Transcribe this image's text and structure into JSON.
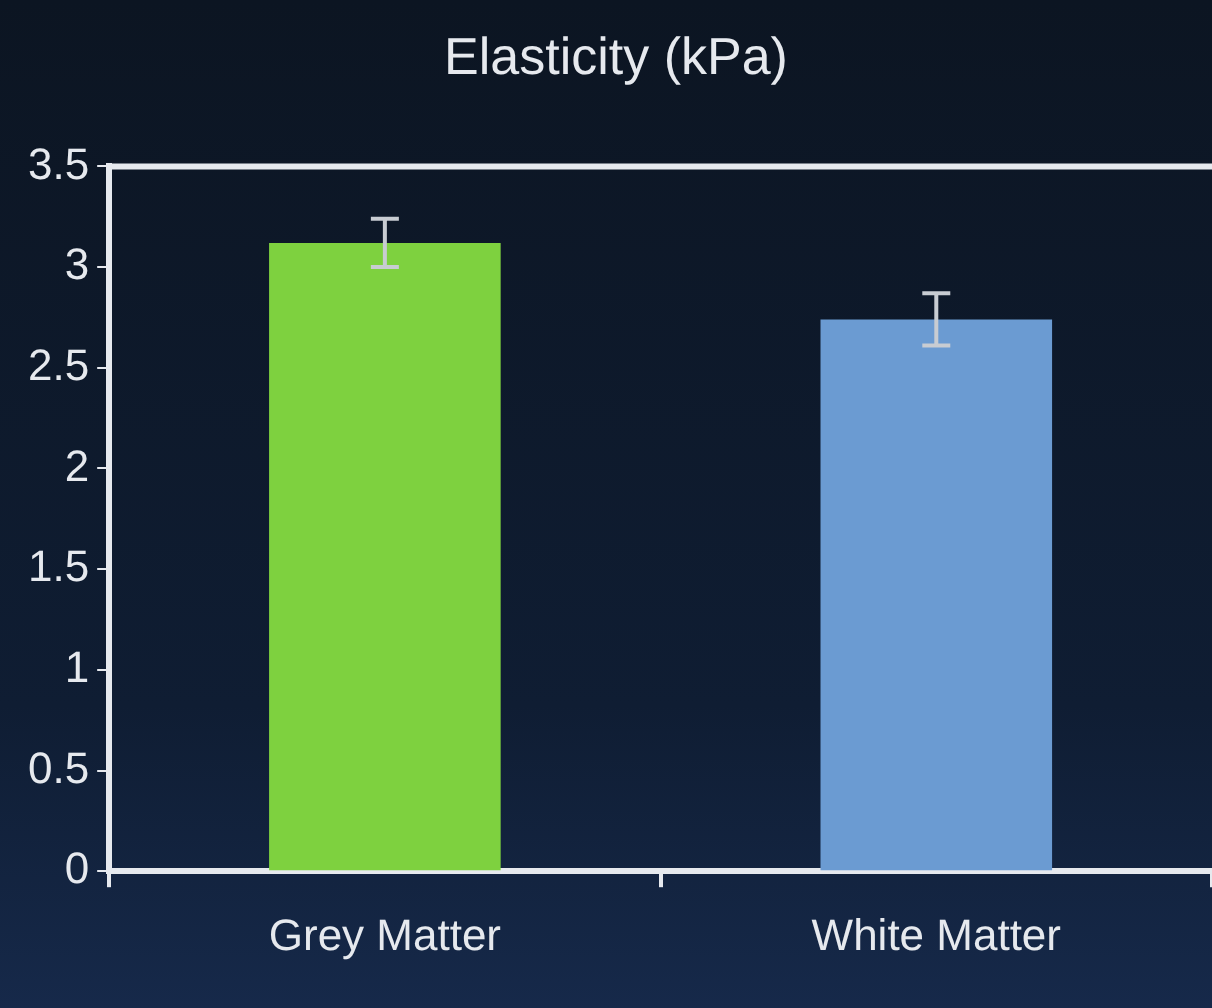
{
  "chart_data": {
    "type": "bar",
    "title": "Elasticity (kPa)",
    "categories": [
      "Grey Matter",
      "White Matter"
    ],
    "values": [
      3.12,
      2.74
    ],
    "errors": [
      0.12,
      0.13
    ],
    "colors": [
      "#7ed13f",
      "#6b9bd2"
    ],
    "ylim": [
      0,
      3.5
    ],
    "yticks": [
      0,
      0.5,
      1,
      1.5,
      2,
      2.5,
      3,
      3.5
    ],
    "grid": false,
    "legend": false
  }
}
